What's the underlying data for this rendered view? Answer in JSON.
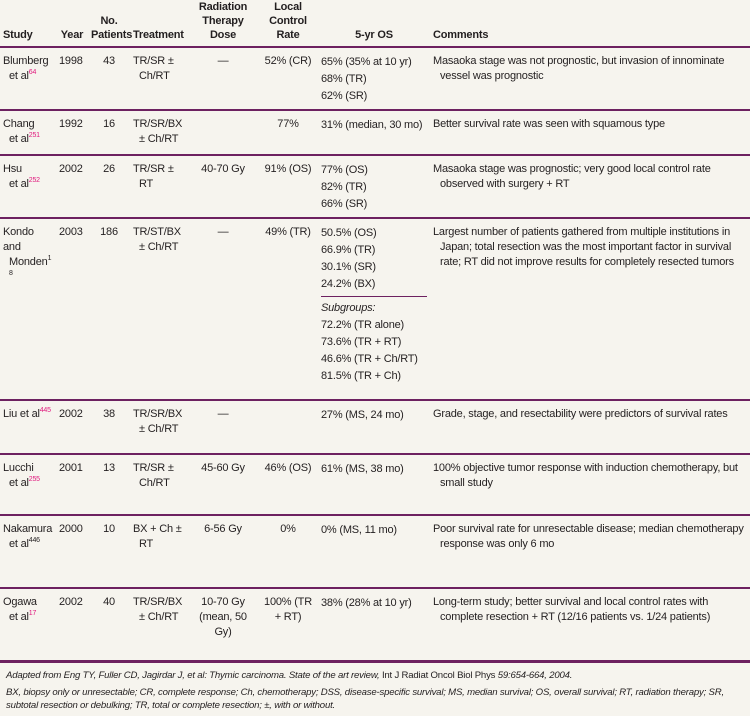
{
  "headers": {
    "study": "Study",
    "year": "Year",
    "patients": "No. Patients",
    "treatment": "Treatment",
    "dose": "Radiation Therapy Dose",
    "local": "Local Control Rate",
    "os": "5-yr OS",
    "comments": "Comments"
  },
  "rows": [
    {
      "study1": "Blumberg",
      "study2": "et al",
      "ref": "64",
      "year": "1998",
      "patients": "43",
      "treatment1": "TR/SR ±",
      "treatment2": "Ch/RT",
      "dose": "—",
      "local": "52% (CR)",
      "os": [
        "65% (35% at 10 yr)",
        "68% (TR)",
        "62% (SR)"
      ],
      "comments": "Masaoka stage was not prognostic, but invasion of innominate vessel was prognostic"
    },
    {
      "study1": "Chang",
      "study2": "et al",
      "ref": "251",
      "year": "1992",
      "patients": "16",
      "treatment1": "TR/SR/BX",
      "treatment2": "± Ch/RT",
      "dose": "",
      "local": "77%",
      "os": [
        "31% (median, 30 mo)"
      ],
      "comments": "Better survival rate was seen with squamous type"
    },
    {
      "study1": "Hsu",
      "study2": "et al",
      "ref": "252",
      "year": "2002",
      "patients": "26",
      "treatment1": "TR/SR ±",
      "treatment2": "RT",
      "dose": "40-70 Gy",
      "local": "91% (OS)",
      "os": [
        "77% (OS)",
        "82% (TR)",
        "66% (SR)"
      ],
      "comments": "Masaoka stage was prognostic; very good local control rate observed with surgery + RT"
    },
    {
      "study1": "Kondo and",
      "study2": "Monden",
      "ref": "18",
      "year": "2003",
      "patients": "186",
      "treatment1": "TR/ST/BX",
      "treatment2": "± Ch/RT",
      "dose": "—",
      "local": "49% (TR)",
      "os": [
        "50.5% (OS)",
        "66.9% (TR)",
        "30.1% (SR)",
        "24.2% (BX)"
      ],
      "subgroups_label": "Subgroups:",
      "subgroups": [
        "72.2% (TR alone)",
        "73.6% (TR + RT)",
        "46.6% (TR + Ch/RT)",
        "81.5% (TR + Ch)"
      ],
      "comments": "Largest number of patients gathered from multiple institutions in Japan; total resection was the most important factor in survival rate; RT did not improve results for completely resected tumors"
    },
    {
      "study1": "Liu et al",
      "study2": "",
      "ref": "445",
      "year": "2002",
      "patients": "38",
      "treatment1": "TR/SR/BX",
      "treatment2": "± Ch/RT",
      "dose": "—",
      "local": "",
      "os": [
        "27% (MS, 24 mo)"
      ],
      "comments": "Grade, stage, and resectability were predictors of survival rates"
    },
    {
      "study1": "Lucchi",
      "study2": "et al",
      "ref": "255",
      "year": "2001",
      "patients": "13",
      "treatment1": "TR/SR ±",
      "treatment2": "Ch/RT",
      "dose": "45-60 Gy",
      "local": "46% (OS)",
      "os": [
        "61% (MS, 38 mo)"
      ],
      "comments": "100% objective tumor response with induction chemotherapy, but small study"
    },
    {
      "study1": "Nakamura",
      "study2": "et al",
      "ref": "446",
      "year": "2000",
      "patients": "10",
      "treatment1": "BX + Ch ±",
      "treatment2": "RT",
      "dose": "6-56 Gy",
      "local": "0%",
      "os": [
        "0% (MS, 11 mo)"
      ],
      "comments": "Poor survival rate for unresectable disease; median chemotherapy response was only 6 mo"
    },
    {
      "study1": "Ogawa",
      "study2": "et al",
      "ref": "17",
      "year": "2002",
      "patients": "40",
      "treatment1": "TR/SR/BX",
      "treatment2": "± Ch/RT",
      "dose": "10-70 Gy (mean, 50 Gy)",
      "local": "100% (TR + RT)",
      "os": [
        "38% (28% at 10 yr)"
      ],
      "comments": "Long-term study; better survival and local control rates with complete resection + RT (12/16 patients vs. 1/24 patients)"
    }
  ],
  "footnotes": {
    "source_italic": "Adapted from Eng TY, Fuller CD, Jagirdar J, et al: Thymic carcinoma. State of the art review,",
    "source_journal": " Int J Radiat Oncol Biol Phys ",
    "source_end": "59:654-664, 2004.",
    "abbrev": "BX, biopsy only or unresectable; CR, complete response; Ch, chemotherapy; DSS, disease-specific survival; MS, median survival; OS, overall survival; RT, radiation therapy; SR, subtotal resection or debulking; TR, total or complete resection; ±, with or without."
  },
  "colors": {
    "rule": "#6d2160",
    "ref": "#e0197d",
    "background": "#f6f4ee"
  }
}
